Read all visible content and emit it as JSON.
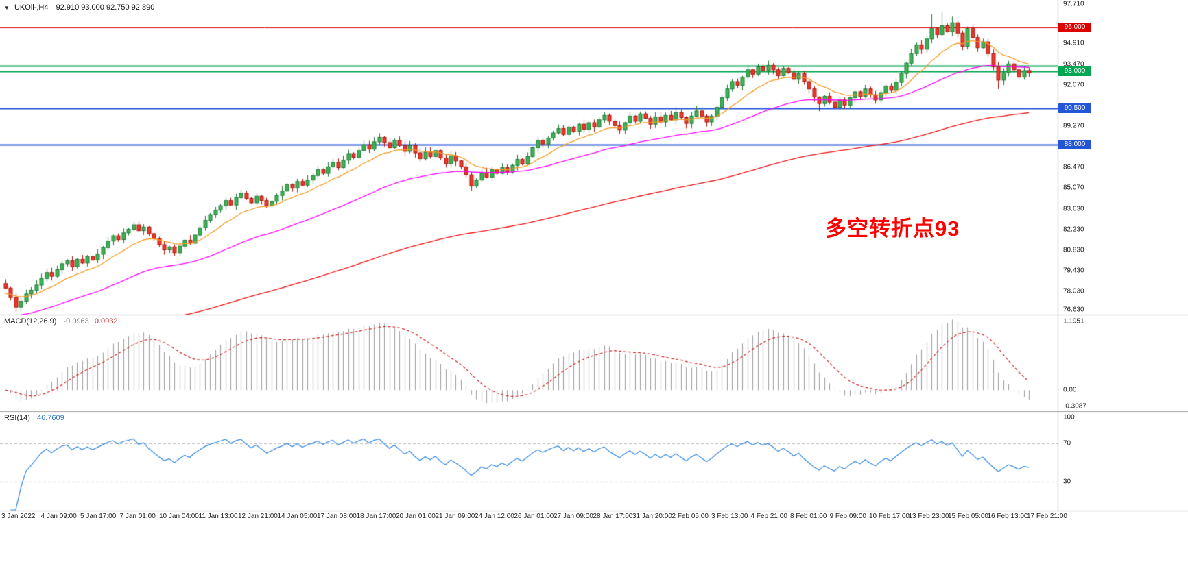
{
  "ui": {
    "symbol_title": "UKOil-,H4",
    "quote_ohlc": "92.910 93.000 92.750 92.890",
    "macd_label": "MACD(12,26,9)",
    "macd_value_main": "-0.0963",
    "macd_value_signal": "0.0932",
    "rsi_label": "RSI(14)",
    "rsi_value": "46.7609",
    "annotation_text": "多空转折点93"
  },
  "chart_data": {
    "type": "candlestick",
    "symbol": "UKOil-",
    "timeframe": "H4",
    "title": "UKOil-,H4 92.910 93.000 92.750 92.890",
    "price_axis": {
      "min": 76.63,
      "max": 97.71,
      "ticks": [
        "97.710",
        "94.910",
        "93.470",
        "92.070",
        "89.270",
        "86.470",
        "85.070",
        "83.630",
        "82.230",
        "80.830",
        "79.430",
        "78.030",
        "76.630"
      ]
    },
    "time_labels": [
      "3 Jan 2022",
      "4 Jan 09:00",
      "5 Jan 17:00",
      "7 Jan 01:00",
      "10 Jan 04:00",
      "11 Jan 13:00",
      "12 Jan 21:00",
      "14 Jan 05:00",
      "17 Jan 08:00",
      "18 Jan 17:00",
      "20 Jan 01:00",
      "21 Jan 09:00",
      "24 Jan 12:00",
      "26 Jan 01:00",
      "27 Jan 09:00",
      "28 Jan 17:00",
      "31 Jan 20:00",
      "2 Feb 05:00",
      "3 Feb 13:00",
      "4 Feb 21:00",
      "8 Feb 01:00",
      "9 Feb 09:00",
      "10 Feb 17:00",
      "13 Feb 23:00",
      "15 Feb 05:00",
      "16 Feb 13:00",
      "17 Feb 21:00"
    ],
    "levels": [
      {
        "price": 96.0,
        "color": "#dd0000",
        "width": 1,
        "badge": "96.000"
      },
      {
        "price": 93.35,
        "color": "#00a651",
        "width": 2,
        "badge": null
      },
      {
        "price": 93.0,
        "color": "#00a651",
        "width": 2,
        "badge": "93.000"
      },
      {
        "price": 90.5,
        "color": "#2356d7",
        "width": 2,
        "badge": "90.500"
      },
      {
        "price": 88.0,
        "color": "#2356d7",
        "width": 2,
        "badge": "88.000"
      }
    ],
    "candles": {
      "first_open": 78.55,
      "closes": [
        78.25,
        77.6,
        76.95,
        77.35,
        77.85,
        78.1,
        78.45,
        78.9,
        79.3,
        79.05,
        79.5,
        79.9,
        80.1,
        79.7,
        80.2,
        79.95,
        80.4,
        80.15,
        80.55,
        81.0,
        81.45,
        81.8,
        81.55,
        82.0,
        82.25,
        82.55,
        82.15,
        82.4,
        81.95,
        81.6,
        81.2,
        80.85,
        81.05,
        80.65,
        81.1,
        81.5,
        81.3,
        81.85,
        82.35,
        82.85,
        83.25,
        83.55,
        83.85,
        84.2,
        83.9,
        84.4,
        84.7,
        84.35,
        84.05,
        84.5,
        84.2,
        83.85,
        84.15,
        84.55,
        84.85,
        85.3,
        85.05,
        85.5,
        85.25,
        85.6,
        85.9,
        86.3,
        86.05,
        86.5,
        86.8,
        86.45,
        86.95,
        87.4,
        87.15,
        87.6,
        88.0,
        87.7,
        88.2,
        88.5,
        88.15,
        87.8,
        88.3,
        87.95,
        87.55,
        87.95,
        87.45,
        87.05,
        87.5,
        87.2,
        87.6,
        87.1,
        86.7,
        87.25,
        86.9,
        86.5,
        85.95,
        85.2,
        85.6,
        86.1,
        85.8,
        86.3,
        86.05,
        86.45,
        86.15,
        86.6,
        87.0,
        86.7,
        87.2,
        87.8,
        88.3,
        88.05,
        88.45,
        88.8,
        89.1,
        88.7,
        89.2,
        88.9,
        89.4,
        89.05,
        89.5,
        89.2,
        89.7,
        90.0,
        89.6,
        89.3,
        89.0,
        89.5,
        89.95,
        89.6,
        90.1,
        89.8,
        89.4,
        89.9,
        89.55,
        90.0,
        89.7,
        90.2,
        89.85,
        89.45,
        89.95,
        90.3,
        89.95,
        89.55,
        89.95,
        90.55,
        91.2,
        91.8,
        92.3,
        92.05,
        92.6,
        93.1,
        92.8,
        93.3,
        93.05,
        93.4,
        93.1,
        92.7,
        93.2,
        92.9,
        92.45,
        92.85,
        92.3,
        91.8,
        91.25,
        90.8,
        91.3,
        90.9,
        90.55,
        91.05,
        90.7,
        91.2,
        91.6,
        91.3,
        91.8,
        91.4,
        91.05,
        91.55,
        92.0,
        91.7,
        92.25,
        92.85,
        93.55,
        94.2,
        94.8,
        94.5,
        95.2,
        95.9,
        95.5,
        96.1,
        95.7,
        96.3,
        95.6,
        94.7,
        95.9,
        95.3,
        94.6,
        95.0,
        94.2,
        93.3,
        92.4,
        92.9,
        93.5,
        93.1,
        92.6,
        93.05,
        92.89
      ],
      "wick_overrides": {
        "2": {
          "low": 76.63
        },
        "73": {
          "high": 88.78
        },
        "91": {
          "low": 84.88
        },
        "149": {
          "high": 93.72
        },
        "159": {
          "low": 90.28
        },
        "181": {
          "high": 96.88
        },
        "183": {
          "high": 97.05
        },
        "185": {
          "high": 96.72
        },
        "194": {
          "low": 91.78
        }
      }
    },
    "moving_averages": [
      {
        "name": "ma-fast",
        "color": "#f59a23",
        "alpha": 0.15,
        "seed": 77.8,
        "width": 1.3
      },
      {
        "name": "ma-medium",
        "color": "#ff00ff",
        "alpha": 0.045,
        "seed": 76.2,
        "width": 1.3
      },
      {
        "name": "ma-slow",
        "color": "#ee1111",
        "alpha": 0.015,
        "seed": 73.5,
        "width": 1.3
      }
    ],
    "macd": {
      "fast": 12,
      "slow": 26,
      "signal": 9,
      "value_main": -0.0963,
      "value_signal": 0.0932,
      "scale_max": 1.1951,
      "scale_min": -0.3087,
      "scale_ticks": [
        "1.1951",
        "0.00",
        "-0.3087"
      ],
      "hist_color": "#9b9b9b",
      "signal_color": "#d42020"
    },
    "rsi": {
      "period": 14,
      "current": 46.7609,
      "upper": 70,
      "lower": 30,
      "scale_ticks": [
        "100",
        "70",
        "30"
      ],
      "line_color": "#2e86e0",
      "level_color": "#b8b8b8"
    },
    "colors": {
      "background": "#ffffff",
      "up_fill": "#3cb454",
      "up_stroke": "#1f7a37",
      "down_fill": "#e8392c",
      "down_stroke": "#b0150b",
      "separator": "#9c9c9c"
    }
  }
}
